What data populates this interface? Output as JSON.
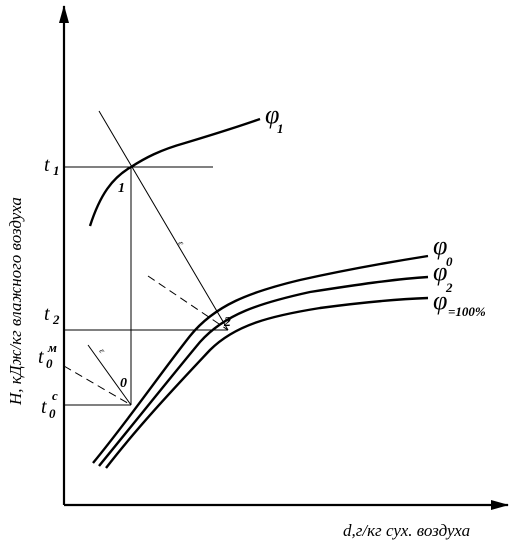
{
  "axes": {
    "y_title": "H, кДж/кг влажного воздуха",
    "x_title": "d,г/кг сух. воздуха"
  },
  "temperature_labels": [
    {
      "base": "t",
      "sub": "1",
      "sup": ""
    },
    {
      "base": "t",
      "sub": "2",
      "sup": ""
    },
    {
      "base": "t",
      "sub": "0",
      "sup": "м"
    },
    {
      "base": "t",
      "sub": "0",
      "sup": "c"
    }
  ],
  "points": [
    "1",
    "2",
    "0"
  ],
  "process_marks": [
    "ε",
    "ε"
  ],
  "curves": [
    {
      "symbol": "φ",
      "sub": "1"
    },
    {
      "symbol": "φ",
      "sub": "0"
    },
    {
      "symbol": "φ",
      "sub": "2"
    },
    {
      "symbol": "φ",
      "sub": "=100%"
    }
  ]
}
